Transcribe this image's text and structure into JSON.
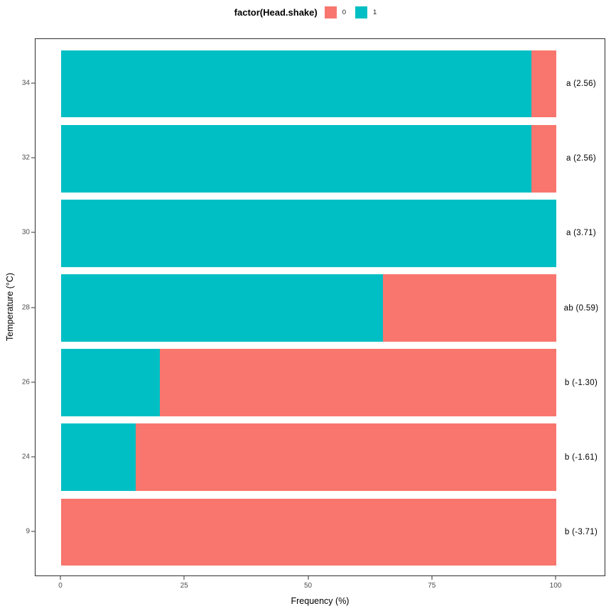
{
  "legend": {
    "title": "factor(Head.shake)",
    "items": [
      {
        "label": "0",
        "color": "#F8766D"
      },
      {
        "label": "1",
        "color": "#00BFC4"
      }
    ]
  },
  "chart_data": {
    "type": "bar",
    "orientation": "horizontal",
    "stacked": true,
    "title": "",
    "xlabel": "Frequency (%)",
    "ylabel": "Temperature (°C)",
    "xlim": [
      0,
      100
    ],
    "x_ticks": [
      "0",
      "25",
      "50",
      "75",
      "100"
    ],
    "categories": [
      "34",
      "32",
      "30",
      "28",
      "26",
      "24",
      "9"
    ],
    "stack_order": [
      "1",
      "0"
    ],
    "series": [
      {
        "name": "0",
        "color": "#F8766D",
        "values": [
          5,
          5,
          0,
          35,
          80,
          85,
          100
        ]
      },
      {
        "name": "1",
        "color": "#00BFC4",
        "values": [
          95,
          95,
          100,
          65,
          20,
          15,
          0
        ]
      }
    ],
    "annotations": [
      "a (2.56)",
      "a (2.56)",
      "a (3.71)",
      "ab (0.59)",
      "b (-1.30)",
      "b (-1.61)",
      "b (-3.71)"
    ],
    "legend_position": "top",
    "grid": false
  },
  "style": {
    "color_0": "#F8766D",
    "color_1": "#00BFC4",
    "tick_label_color": "#4D4D4D",
    "panel_border_color": "#2E2E2E",
    "text_color": "#000000",
    "background": "#FFFFFF"
  }
}
